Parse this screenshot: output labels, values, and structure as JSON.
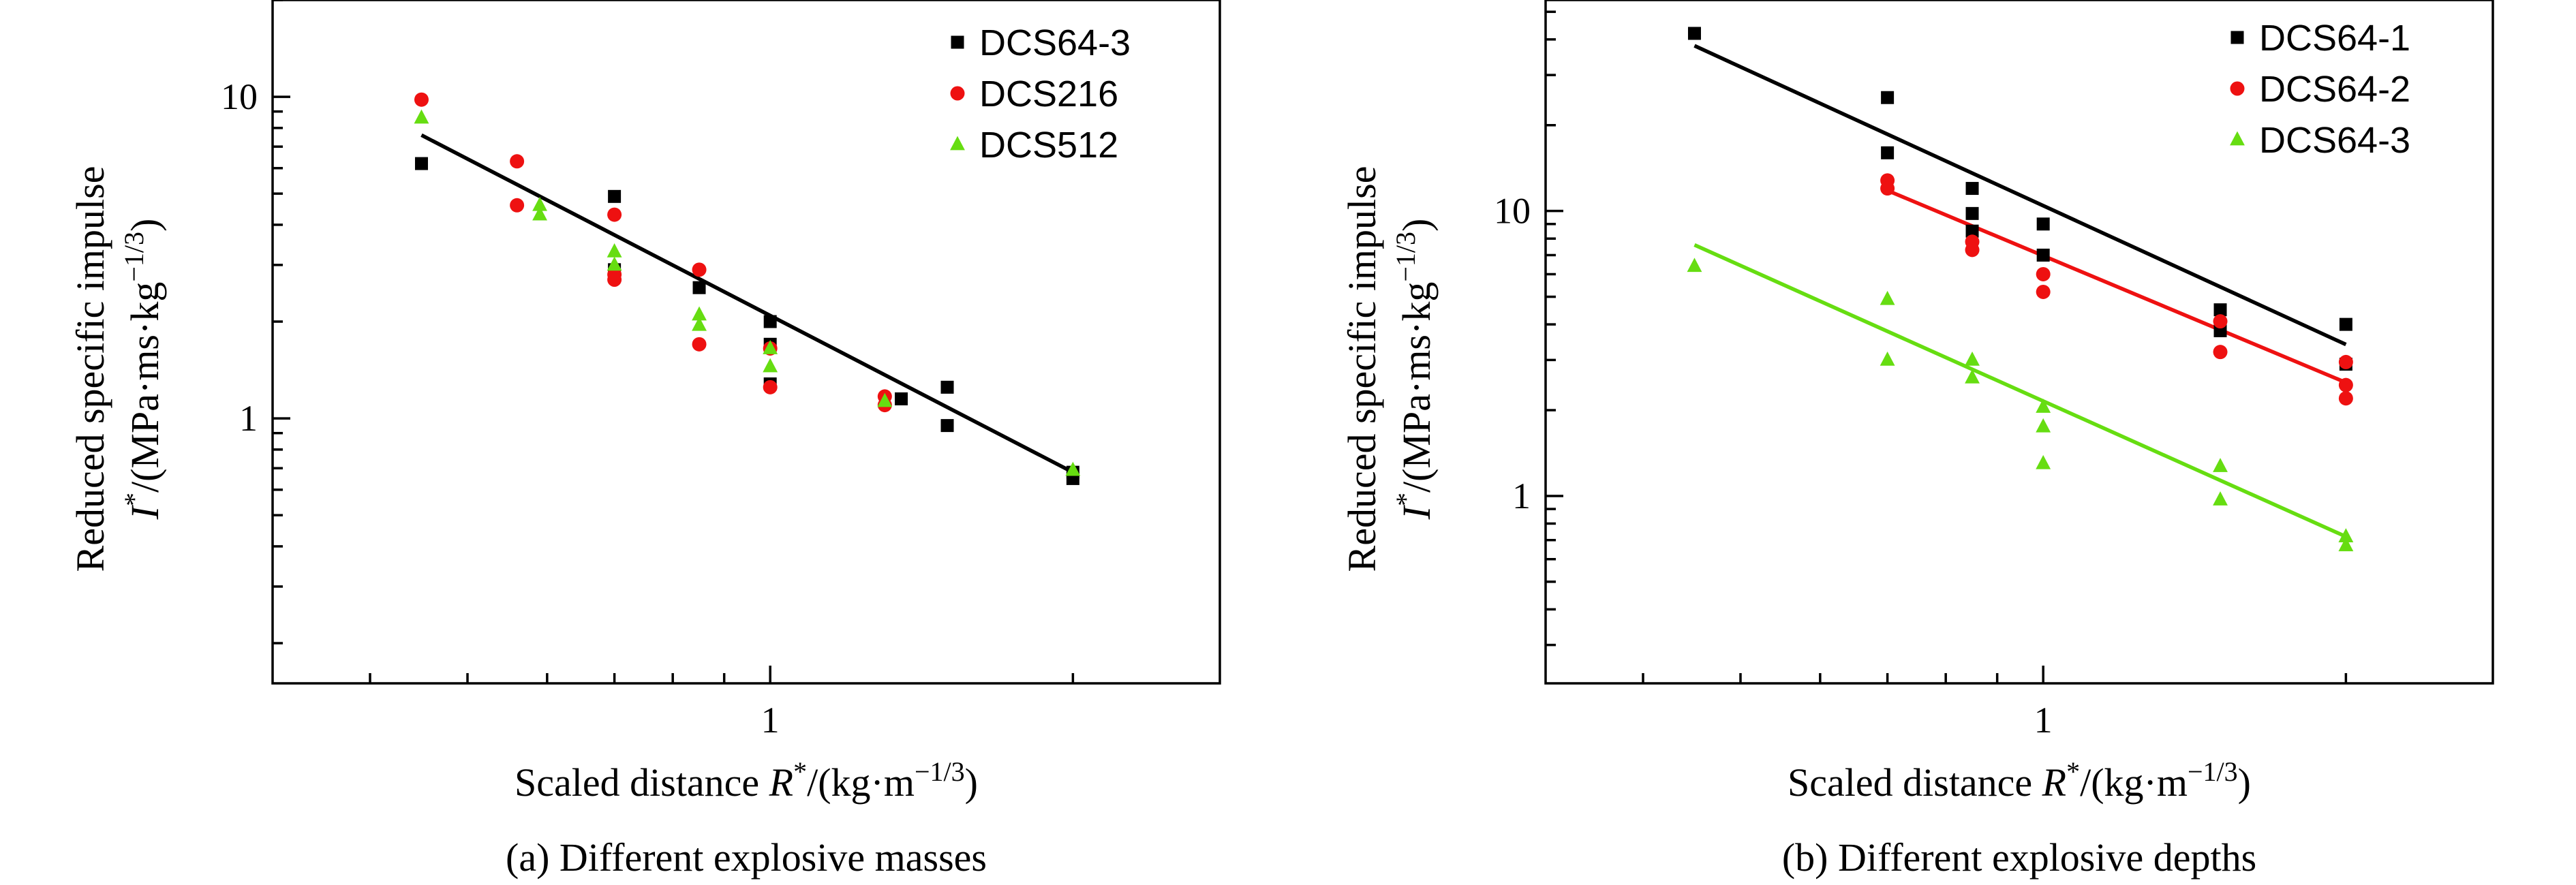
{
  "chart_data": [
    {
      "type": "scatter",
      "x_scale": "log",
      "y_scale": "log",
      "xlim": [
        0.32,
        2.8
      ],
      "ylim": [
        0.15,
        20
      ],
      "x_ticks": [
        {
          "value": 1,
          "label": "1"
        }
      ],
      "y_ticks": [
        {
          "value": 1,
          "label": "1"
        },
        {
          "value": 10,
          "label": "10"
        }
      ],
      "xlabel": {
        "prefix": "Scaled distance ",
        "symbol": "R",
        "sup": "*",
        "unit": "/(kg·m",
        "unit_sup": "−1/3",
        "close": ")"
      },
      "ylabel": {
        "line1": "Reduced specific impulse",
        "symbol": "I",
        "sup": "*",
        "unit": "/(MPa·ms·kg",
        "unit_sup": "−1/3",
        "close": ")"
      },
      "caption": "(a) Different explosive masses",
      "legend_position": "top-right",
      "series": [
        {
          "name": "DCS64-3",
          "color": "#000000",
          "marker": "square",
          "points": [
            [
              0.45,
              6.2
            ],
            [
              0.7,
              4.9
            ],
            [
              0.7,
              2.9
            ],
            [
              0.85,
              2.55
            ],
            [
              1.0,
              2.0
            ],
            [
              1.0,
              1.7
            ],
            [
              1.0,
              1.28
            ],
            [
              1.35,
              1.15
            ],
            [
              1.5,
              1.25
            ],
            [
              1.5,
              0.95
            ],
            [
              2.0,
              0.68
            ],
            [
              2.0,
              0.65
            ]
          ]
        },
        {
          "name": "DCS216",
          "color": "#ee1111",
          "marker": "circle",
          "points": [
            [
              0.45,
              9.8
            ],
            [
              0.56,
              6.3
            ],
            [
              0.56,
              4.6
            ],
            [
              0.7,
              4.3
            ],
            [
              0.7,
              2.8
            ],
            [
              0.7,
              2.7
            ],
            [
              0.85,
              2.9
            ],
            [
              0.85,
              1.7
            ],
            [
              1.0,
              1.65
            ],
            [
              1.0,
              1.25
            ],
            [
              1.3,
              1.17
            ],
            [
              1.3,
              1.1
            ]
          ]
        },
        {
          "name": "DCS512",
          "color": "#66dd11",
          "marker": "triangle",
          "points": [
            [
              0.45,
              8.6
            ],
            [
              0.59,
              4.6
            ],
            [
              0.59,
              4.3
            ],
            [
              0.7,
              3.3
            ],
            [
              0.7,
              3.0
            ],
            [
              0.85,
              2.1
            ],
            [
              0.85,
              1.95
            ],
            [
              1.0,
              1.65
            ],
            [
              1.0,
              1.45
            ],
            [
              1.3,
              1.13
            ],
            [
              2.0,
              0.69
            ]
          ]
        }
      ],
      "fits": [
        {
          "color": "#000000",
          "from": [
            0.45,
            7.6
          ],
          "to": [
            2.0,
            0.68
          ]
        }
      ]
    },
    {
      "type": "scatter",
      "x_scale": "log",
      "y_scale": "log",
      "xlim": [
        0.32,
        2.8
      ],
      "ylim": [
        0.22,
        55
      ],
      "x_ticks": [
        {
          "value": 1,
          "label": "1"
        }
      ],
      "y_ticks": [
        {
          "value": 1,
          "label": "1"
        },
        {
          "value": 10,
          "label": "10"
        }
      ],
      "xlabel": {
        "prefix": "Scaled distance ",
        "symbol": "R",
        "sup": "*",
        "unit": "/(kg·m",
        "unit_sup": "−1/3",
        "close": ")"
      },
      "ylabel": {
        "line1": "Reduced specific impulse",
        "symbol": "I",
        "sup": "*",
        "unit": "/(MPa·ms·kg",
        "unit_sup": "−1/3",
        "close": ")"
      },
      "caption": "(b) Different explosive depths",
      "legend_position": "top-right",
      "series": [
        {
          "name": "DCS64-1",
          "color": "#000000",
          "marker": "square",
          "points": [
            [
              0.45,
              42
            ],
            [
              0.7,
              25
            ],
            [
              0.7,
              16
            ],
            [
              0.85,
              12
            ],
            [
              0.85,
              9.8
            ],
            [
              0.85,
              8.5
            ],
            [
              1.0,
              9.0
            ],
            [
              1.0,
              7.0
            ],
            [
              1.5,
              4.5
            ],
            [
              1.5,
              3.8
            ],
            [
              2.0,
              4.0
            ],
            [
              2.0,
              2.9
            ]
          ]
        },
        {
          "name": "DCS64-2",
          "color": "#ee1111",
          "marker": "circle",
          "points": [
            [
              0.7,
              12.8
            ],
            [
              0.7,
              12.0
            ],
            [
              0.85,
              7.8
            ],
            [
              0.85,
              7.3
            ],
            [
              1.0,
              6.0
            ],
            [
              1.0,
              5.2
            ],
            [
              1.5,
              4.1
            ],
            [
              1.5,
              3.2
            ],
            [
              2.0,
              2.95
            ],
            [
              2.0,
              2.45
            ],
            [
              2.0,
              2.2
            ]
          ]
        },
        {
          "name": "DCS64-3",
          "color": "#66dd11",
          "marker": "triangle",
          "points": [
            [
              0.45,
              6.4
            ],
            [
              0.7,
              4.9
            ],
            [
              0.7,
              3.0
            ],
            [
              0.85,
              3.0
            ],
            [
              0.85,
              2.6
            ],
            [
              1.0,
              2.05
            ],
            [
              1.0,
              1.75
            ],
            [
              1.0,
              1.3
            ],
            [
              1.5,
              1.27
            ],
            [
              1.5,
              0.97
            ],
            [
              2.0,
              0.72
            ],
            [
              2.0,
              0.67
            ]
          ]
        }
      ],
      "fits": [
        {
          "color": "#000000",
          "from": [
            0.45,
            38
          ],
          "to": [
            2.0,
            3.4
          ]
        },
        {
          "color": "#ee1111",
          "from": [
            0.7,
            11.8
          ],
          "to": [
            2.0,
            2.5
          ]
        },
        {
          "color": "#66dd11",
          "from": [
            0.45,
            7.6
          ],
          "to": [
            2.0,
            0.72
          ]
        }
      ]
    }
  ]
}
